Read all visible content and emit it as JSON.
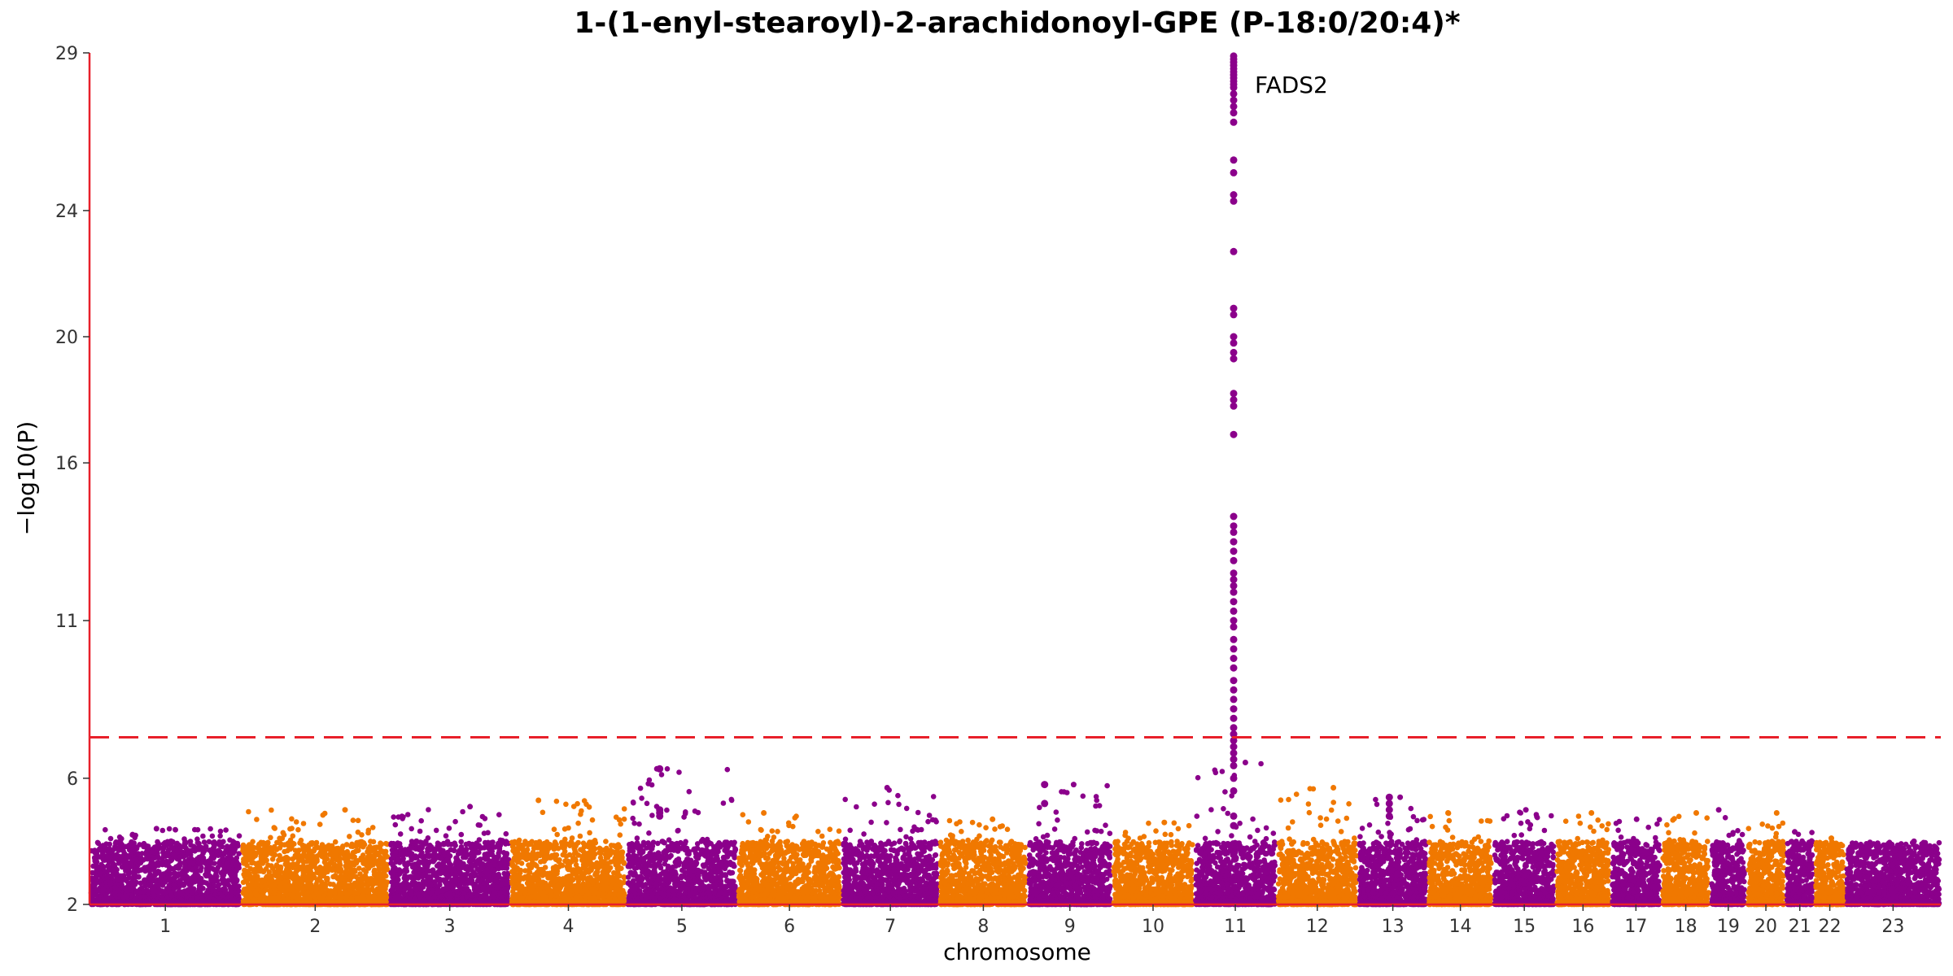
{
  "chart_data": {
    "type": "scatter",
    "title": "1-(1-enyl-stearoyl)-2-arachidonoyl-GPE (P-18:0/20:4)*",
    "xlabel": "chromosome",
    "ylabel": "−log10(P)",
    "ylim": [
      2,
      29
    ],
    "y_ticks": [
      2,
      6,
      11,
      16,
      20,
      24,
      29
    ],
    "significance_threshold": 7.3,
    "grid": false,
    "colors": {
      "odd": "#8b008b",
      "even": "#f07800",
      "axis": "#e8202a",
      "threshold": "#e8202a"
    },
    "chromosomes": [
      {
        "label": "1",
        "size": 248,
        "peak": 4.4
      },
      {
        "label": "2",
        "size": 242,
        "peak": 5.0
      },
      {
        "label": "3",
        "size": 198,
        "peak": 5.1
      },
      {
        "label": "4",
        "size": 190,
        "peak": 5.3
      },
      {
        "label": "5",
        "size": 181,
        "peak": 6.3
      },
      {
        "label": "6",
        "size": 171,
        "peak": 4.9
      },
      {
        "label": "7",
        "size": 159,
        "peak": 5.7
      },
      {
        "label": "8",
        "size": 145,
        "peak": 4.7
      },
      {
        "label": "9",
        "size": 138,
        "peak": 5.8
      },
      {
        "label": "10",
        "size": 134,
        "peak": 4.6
      },
      {
        "label": "11",
        "size": 135,
        "peak": 28.9
      },
      {
        "label": "12",
        "size": 133,
        "peak": 5.7
      },
      {
        "label": "13",
        "size": 114,
        "peak": 5.4
      },
      {
        "label": "14",
        "size": 107,
        "peak": 4.9
      },
      {
        "label": "15",
        "size": 102,
        "peak": 5.0
      },
      {
        "label": "16",
        "size": 90,
        "peak": 4.9
      },
      {
        "label": "17",
        "size": 83,
        "peak": 4.7
      },
      {
        "label": "18",
        "size": 80,
        "peak": 4.9
      },
      {
        "label": "19",
        "size": 59,
        "peak": 5.0
      },
      {
        "label": "20",
        "size": 64,
        "peak": 4.9
      },
      {
        "label": "21",
        "size": 47,
        "peak": 4.3
      },
      {
        "label": "22",
        "size": 51,
        "peak": 4.1
      },
      {
        "label": "23",
        "size": 156,
        "peak": 4.0
      }
    ],
    "highlighted_hits": [
      {
        "chromosome": "11",
        "position_fraction": 0.48,
        "y": [
          28.9,
          28.8,
          28.7,
          28.6,
          28.5,
          28.4,
          28.3,
          28.2,
          28.1,
          28.0,
          27.9,
          27.7,
          27.5,
          27.3,
          27.1,
          26.8,
          25.6,
          25.2,
          24.5,
          24.3,
          22.7,
          20.9,
          20.7,
          20.0,
          19.8,
          19.5,
          19.3,
          18.2,
          18.0,
          17.8,
          16.9,
          14.3,
          14.0,
          13.8,
          13.5,
          13.2,
          12.9,
          12.5,
          12.3,
          12.1,
          11.9,
          11.6,
          11.3,
          11.0,
          10.8,
          10.4,
          10.1,
          9.8,
          9.5,
          9.1,
          8.8,
          8.5,
          8.2,
          7.9,
          7.6,
          7.4,
          7.2,
          7.0,
          6.8,
          6.6,
          6.4,
          6.0,
          5.6,
          4.8,
          4.5
        ]
      },
      {
        "chromosome": "5",
        "position_fraction": 0.3,
        "y": [
          6.3,
          5.0,
          4.9,
          4.8
        ]
      },
      {
        "chromosome": "13",
        "position_fraction": 0.45,
        "y": [
          5.4,
          5.2,
          5.0,
          4.8
        ]
      },
      {
        "chromosome": "9",
        "position_fraction": 0.2,
        "y": [
          5.8,
          5.2
        ]
      }
    ],
    "annotations": [
      {
        "text": "FADS2",
        "chromosome": "11",
        "y": 28.0
      }
    ]
  }
}
